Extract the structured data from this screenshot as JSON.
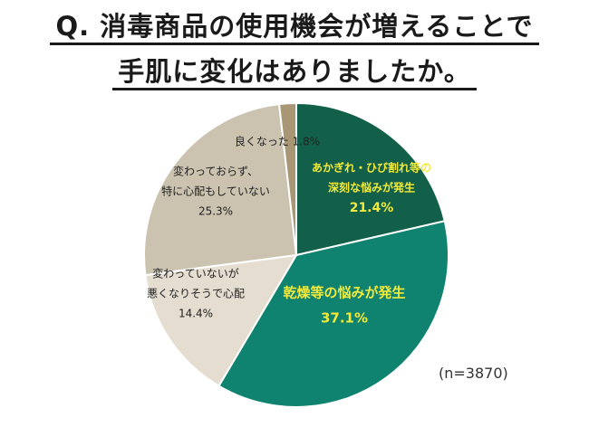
{
  "title": {
    "line1": "Q. 消毒商品の使用機会が増えることで",
    "line2": "手肌に変化はありましたか。"
  },
  "sample_size": "(n=3870)",
  "chart_data": {
    "type": "pie",
    "title": "Q. 消毒商品の使用機会が増えることで手肌に変化はありましたか。",
    "start_angle_deg": 0,
    "direction": "clockwise",
    "slices": [
      {
        "label_lines": [
          "あかぎれ・ひび割れ等の",
          "深刻な悩みが発生"
        ],
        "value": 21.4,
        "value_label": "21.4%",
        "color": "#12604a",
        "label_color": "#f2ea3a"
      },
      {
        "label_lines": [
          "乾燥等の悩みが発生"
        ],
        "value": 37.1,
        "value_label": "37.1%",
        "color": "#0f8370",
        "label_color": "#f2ea3a"
      },
      {
        "label_lines": [
          "変わっていないが",
          "悪くなりそうで心配"
        ],
        "value": 14.4,
        "value_label": "14.4%",
        "color": "#e4ddd0",
        "label_color": "#222222"
      },
      {
        "label_lines": [
          "変わっておらず、",
          "特に心配もしていない"
        ],
        "value": 25.3,
        "value_label": "25.3%",
        "color": "#cbc3b0",
        "label_color": "#222222"
      },
      {
        "label_lines": [
          "良くなった"
        ],
        "value": 1.8,
        "value_label": "1.8%",
        "color": "#a89674",
        "label_color": "#222222"
      }
    ]
  }
}
